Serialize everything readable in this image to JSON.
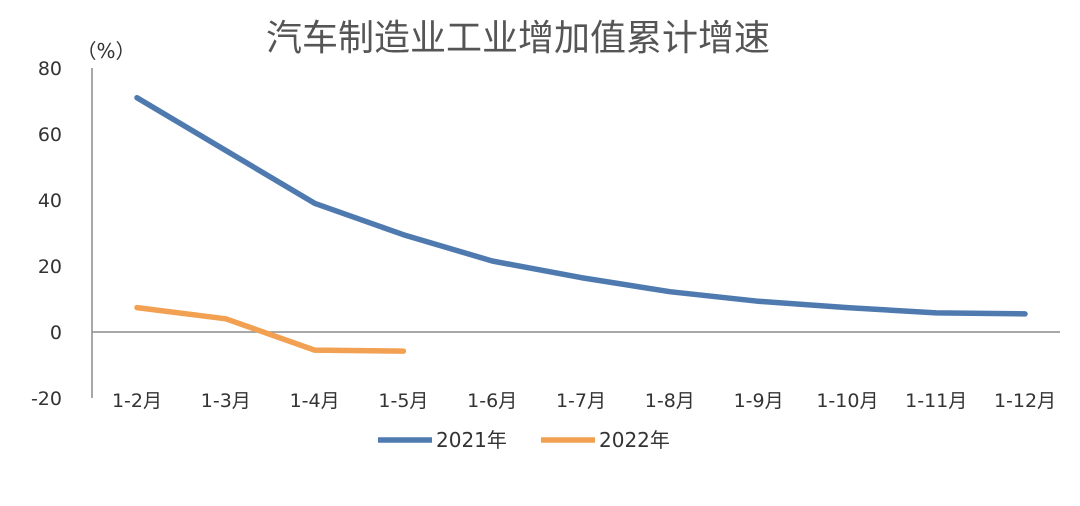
{
  "chart_data": {
    "type": "line",
    "title": "汽车制造业工业增加值累计增速",
    "ylabel": "（%）",
    "xlabel": "",
    "categories": [
      "1-2月",
      "1-3月",
      "1-4月",
      "1-5月",
      "1-6月",
      "1-7月",
      "1-8月",
      "1-9月",
      "1-10月",
      "1-11月",
      "1-12月"
    ],
    "ylim": [
      -20,
      80
    ],
    "yticks": [
      80,
      60,
      40,
      20,
      0,
      -20
    ],
    "grid": false,
    "legend_position": "bottom",
    "series": [
      {
        "name": "2021年",
        "color": "#4F7AAF",
        "values": [
          71,
          55,
          39,
          29.5,
          21.5,
          16.5,
          12.2,
          9.3,
          7.4,
          5.8,
          5.5
        ]
      },
      {
        "name": "2022年",
        "color": "#F2A051",
        "values": [
          7.4,
          4,
          -5.5,
          -5.8,
          null,
          null,
          null,
          null,
          null,
          null,
          null
        ]
      }
    ]
  }
}
